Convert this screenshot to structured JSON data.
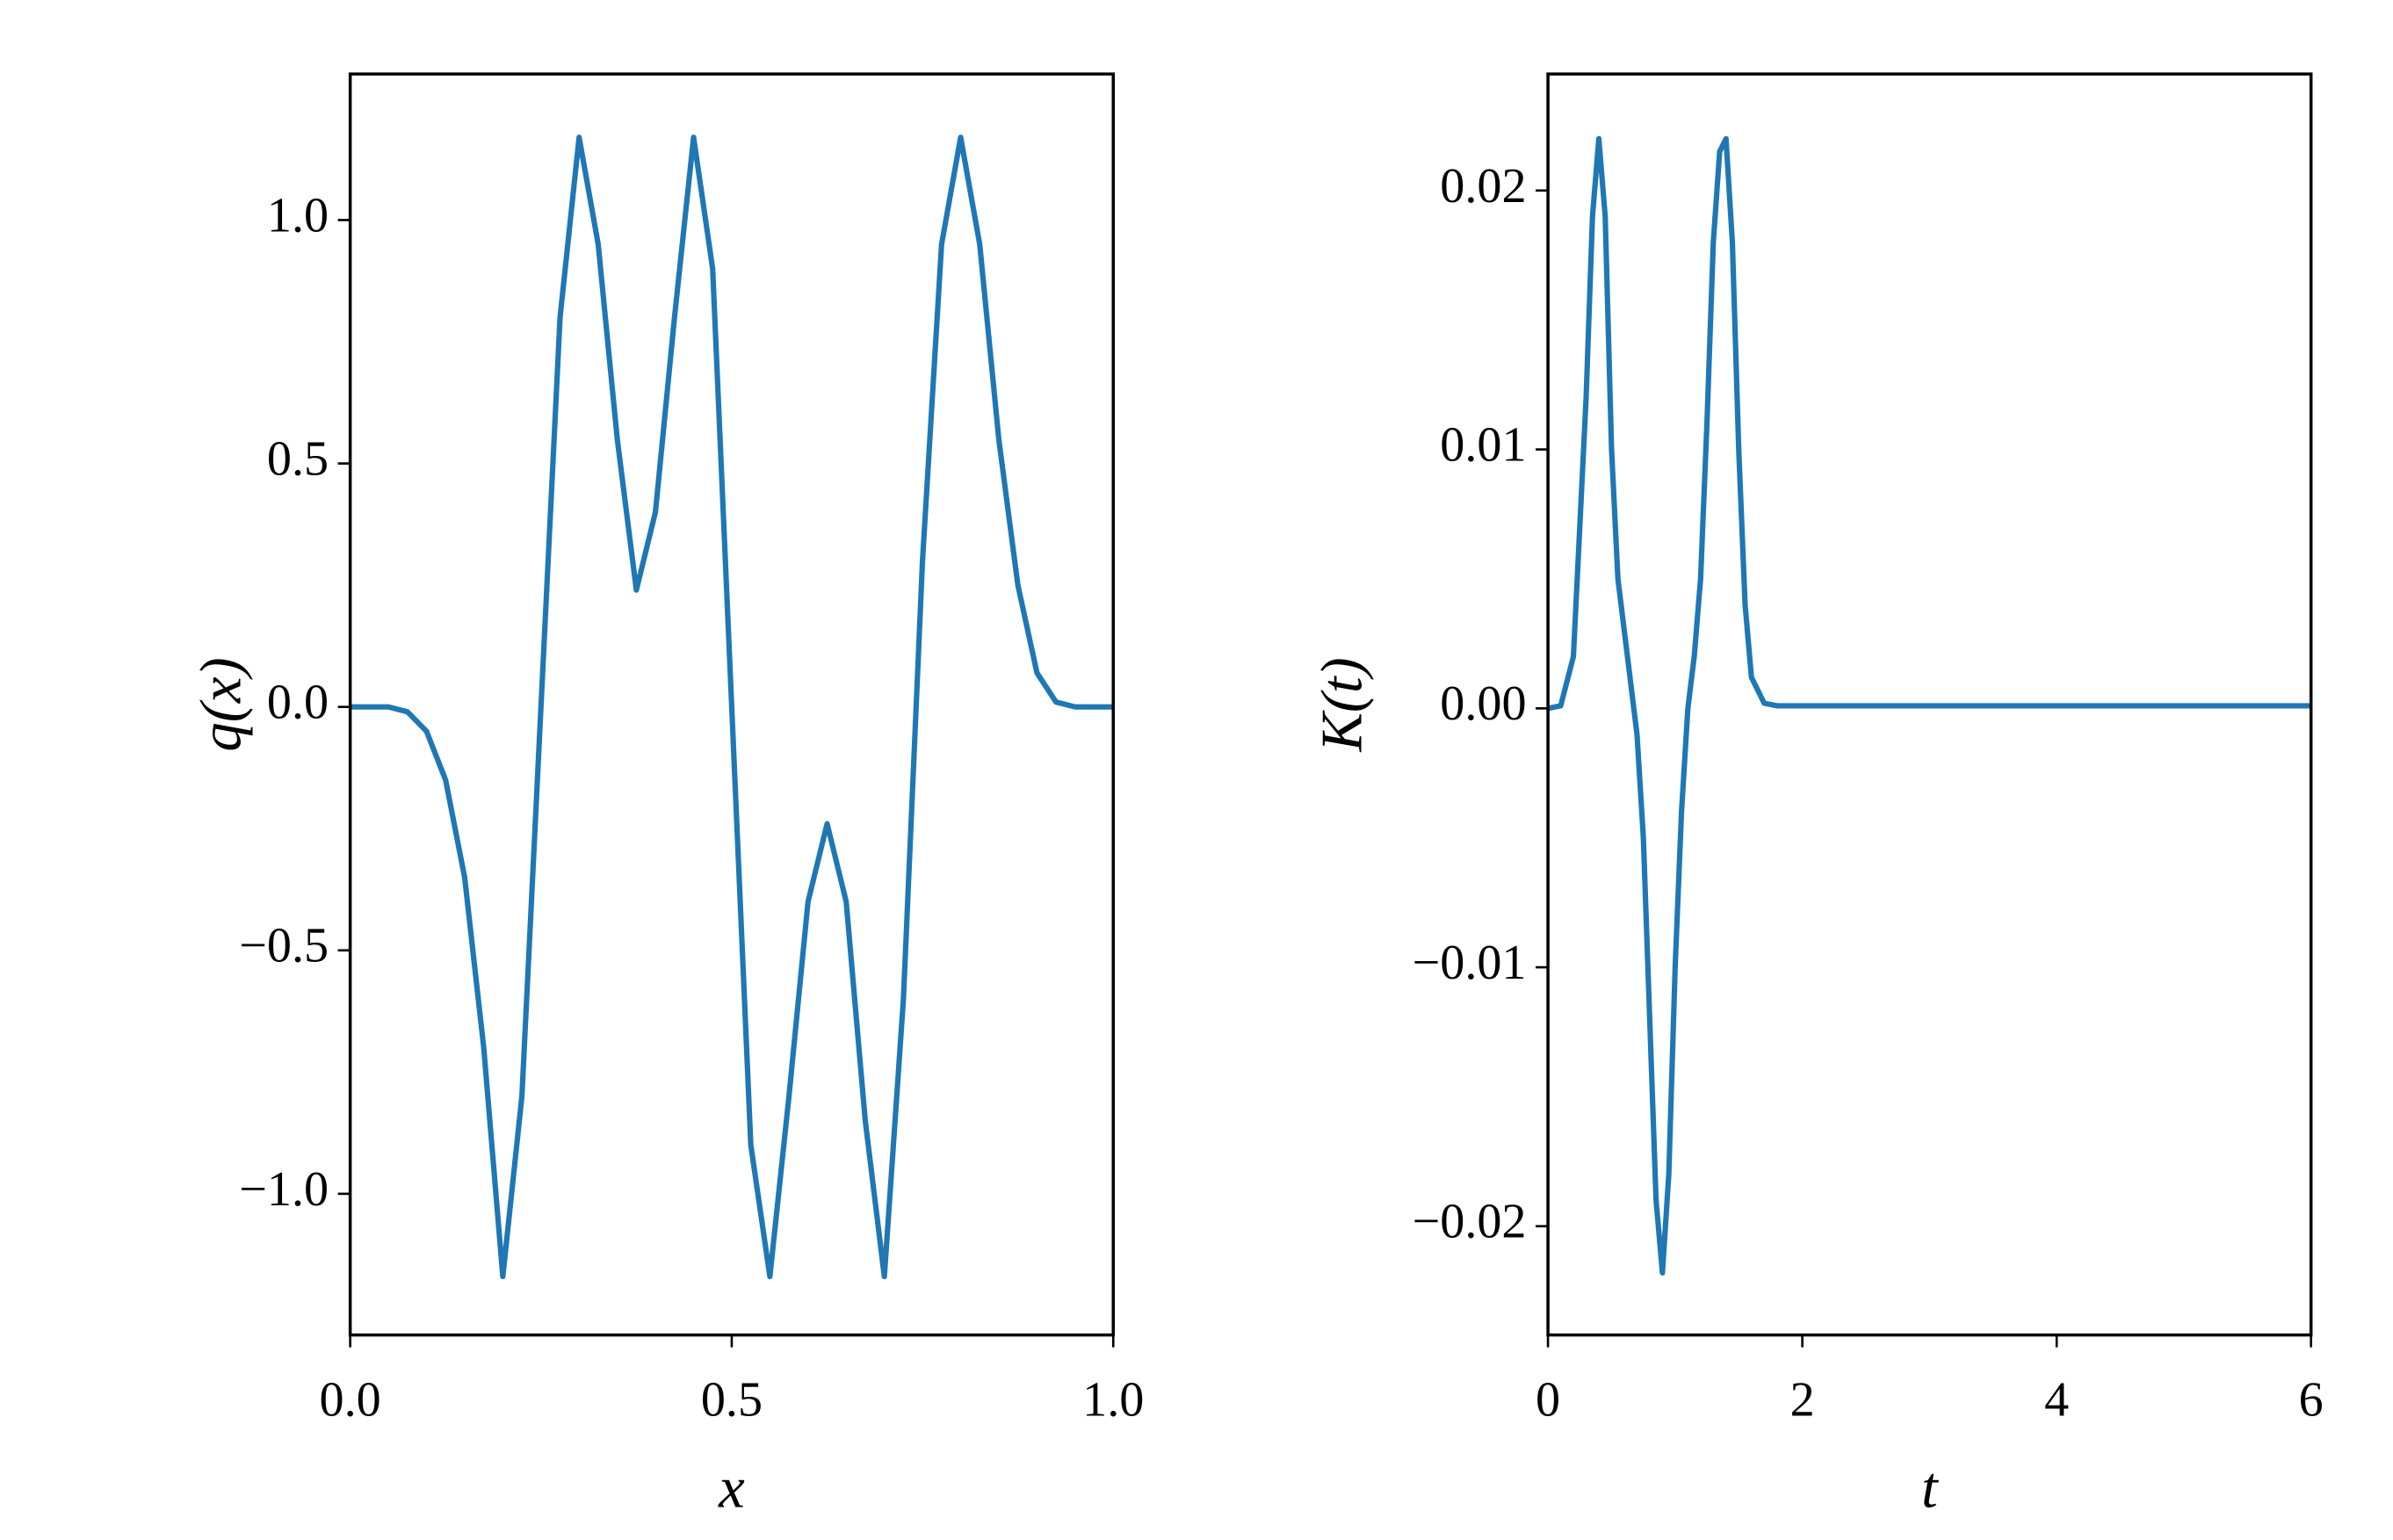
{
  "chart_data": [
    {
      "type": "line",
      "xlabel": "x",
      "ylabel": "q(x)",
      "x": [
        0,
        0.05,
        0.075,
        0.1,
        0.125,
        0.15,
        0.175,
        0.2,
        0.225,
        0.25,
        0.275,
        0.3,
        0.325,
        0.35,
        0.375,
        0.4,
        0.425,
        0.45,
        0.475,
        0.5,
        0.525,
        0.55,
        0.575,
        0.6,
        0.625,
        0.65,
        0.675,
        0.7,
        0.725,
        0.75,
        0.775,
        0.8,
        0.825,
        0.85,
        0.875,
        0.9,
        0.925,
        0.95,
        1.0
      ],
      "series": [
        {
          "name": "q",
          "color": "#1f77b4",
          "values": [
            0,
            0,
            -0.01,
            -0.05,
            -0.15,
            -0.35,
            -0.7,
            -1.17,
            -0.8,
            0.0,
            0.8,
            1.17,
            0.95,
            0.55,
            0.24,
            0.4,
            0.8,
            1.17,
            0.9,
            0.0,
            -0.9,
            -1.17,
            -0.8,
            -0.4,
            -0.24,
            -0.4,
            -0.85,
            -1.17,
            -0.6,
            0.3,
            0.95,
            1.17,
            0.95,
            0.55,
            0.25,
            0.07,
            0.01,
            0,
            0
          ]
        }
      ],
      "xlim": [
        0,
        1
      ],
      "ylim": [
        -1.29,
        1.3
      ],
      "xticks": [
        {
          "value": 0,
          "label": "0.0"
        },
        0.5,
        {
          "value": 1,
          "label": "1.0"
        }
      ],
      "yticks": [
        {
          "value": -1,
          "label": "−1.0"
        },
        {
          "value": -0.5,
          "label": "−0.5"
        },
        {
          "value": 0,
          "label": "0.0"
        },
        0.5,
        {
          "value": 1,
          "label": "1.0"
        }
      ]
    },
    {
      "type": "line",
      "xlabel": "t",
      "ylabel": "K(t)",
      "x": [
        0,
        0.1,
        0.2,
        0.3,
        0.35,
        0.4,
        0.45,
        0.5,
        0.55,
        0.6,
        0.65,
        0.7,
        0.75,
        0.8,
        0.85,
        0.9,
        0.95,
        1.0,
        1.05,
        1.1,
        1.15,
        1.2,
        1.25,
        1.3,
        1.35,
        1.4,
        1.45,
        1.5,
        1.55,
        1.6,
        1.7,
        1.8,
        6
      ],
      "series": [
        {
          "name": "K",
          "color": "#1f77b4",
          "values": [
            0,
            0.0001,
            0.002,
            0.012,
            0.019,
            0.022,
            0.019,
            0.01,
            0.005,
            0.003,
            0.001,
            -0.001,
            -0.005,
            -0.012,
            -0.019,
            -0.0218,
            -0.018,
            -0.01,
            -0.004,
            0.0,
            0.002,
            0.005,
            0.011,
            0.018,
            0.0215,
            0.022,
            0.018,
            0.01,
            0.004,
            0.0012,
            0.0002,
            0.0001,
            0.0001
          ]
        }
      ],
      "xlim": [
        0,
        6
      ],
      "ylim": [
        -0.0242,
        0.0245
      ],
      "xticks": [
        0,
        2,
        4,
        6
      ],
      "yticks": [
        {
          "value": -0.02,
          "label": "−0.02"
        },
        {
          "value": -0.01,
          "label": "−0.01"
        },
        {
          "value": 0,
          "label": "0.00"
        },
        0.01,
        0.02
      ]
    }
  ]
}
